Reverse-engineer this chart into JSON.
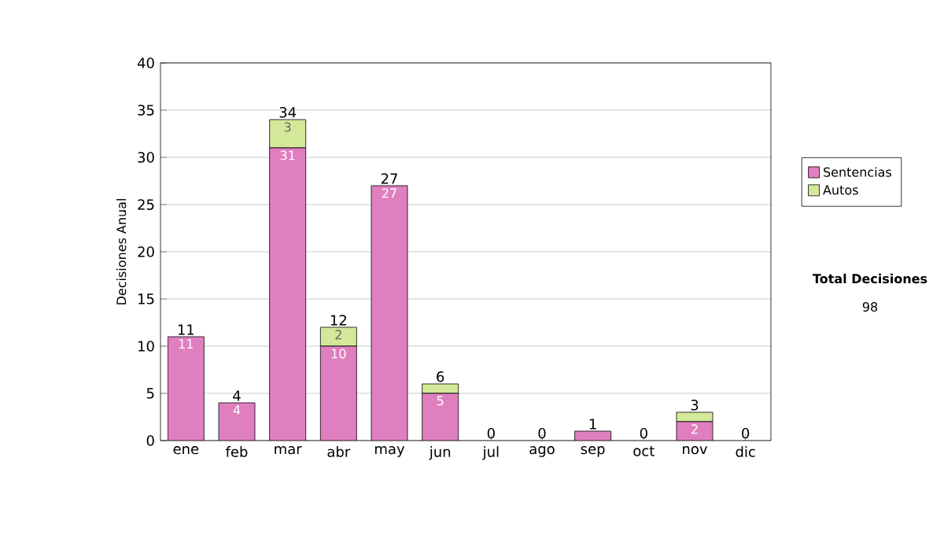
{
  "chart_data": {
    "type": "bar",
    "stacked": true,
    "ylabel": "Decisiones Anual",
    "categories": [
      "ene",
      "feb",
      "mar",
      "abr",
      "may",
      "jun",
      "jul",
      "ago",
      "sep",
      "oct",
      "nov",
      "dic"
    ],
    "series": [
      {
        "name": "Sentencias",
        "color": "#e07fc0",
        "values": [
          11,
          4,
          31,
          10,
          27,
          5,
          0,
          0,
          1,
          0,
          2,
          0
        ],
        "value_labels": [
          "11",
          "4",
          "31",
          "10",
          "27",
          "5",
          null,
          null,
          null,
          null,
          "2",
          null
        ]
      },
      {
        "name": "Autos",
        "color": "#d4e89a",
        "values": [
          0,
          0,
          3,
          2,
          0,
          1,
          0,
          0,
          0,
          0,
          1,
          0
        ],
        "value_labels": [
          null,
          null,
          "3",
          "2",
          null,
          null,
          null,
          null,
          null,
          null,
          null,
          null
        ]
      }
    ],
    "totals": [
      "11",
      "4",
      "34",
      "12",
      "27",
      "6",
      "0",
      "0",
      "1",
      "0",
      "3",
      "0"
    ],
    "ylim": [
      0,
      40
    ],
    "yticks": [
      0,
      5,
      10,
      15,
      20,
      25,
      30,
      35,
      40
    ],
    "grid": "y",
    "legend": "right",
    "annotations": [
      "Total Decisiones",
      "98"
    ]
  }
}
